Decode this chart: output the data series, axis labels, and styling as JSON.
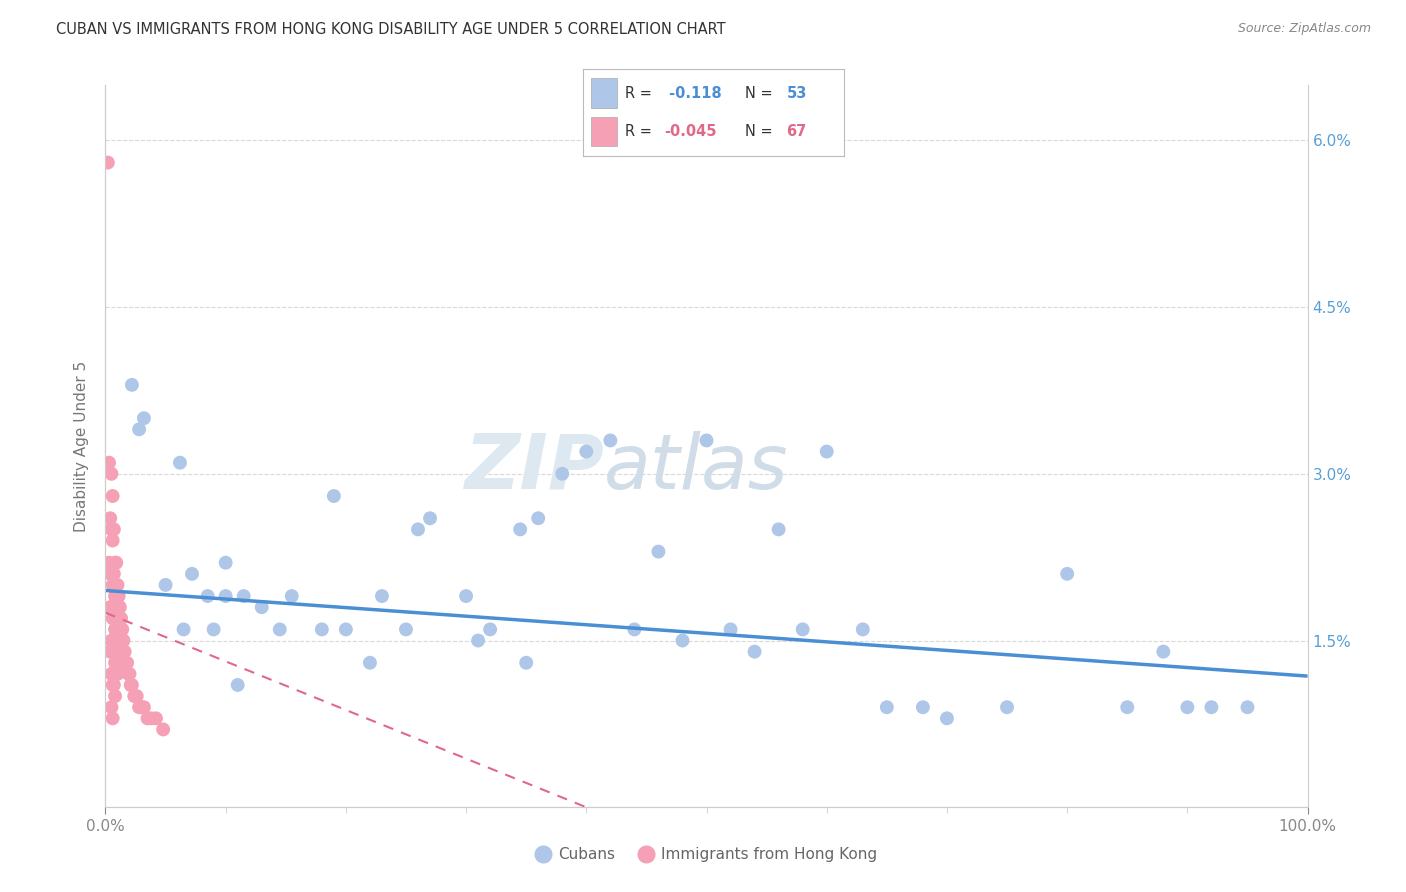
{
  "title": "CUBAN VS IMMIGRANTS FROM HONG KONG DISABILITY AGE UNDER 5 CORRELATION CHART",
  "source": "Source: ZipAtlas.com",
  "ylabel": "Disability Age Under 5",
  "xmin": 0.0,
  "xmax": 1.0,
  "ymin": 0.0,
  "ymax": 0.065,
  "label_cubans": "Cubans",
  "label_hk": "Immigrants from Hong Kong",
  "blue_scatter_color": "#aec6e8",
  "pink_scatter_color": "#f5a0b5",
  "trend_blue_color": "#4a8fd4",
  "trend_pink_color": "#e06888",
  "legend_r_blue": "-0.118",
  "legend_n_blue": "53",
  "legend_r_pink": "-0.045",
  "legend_n_pink": "67",
  "background_color": "#ffffff",
  "grid_color": "#d8d8d8",
  "right_axis_color": "#5a9fd4",
  "ytick_positions": [
    0.0,
    0.015,
    0.03,
    0.045,
    0.06
  ],
  "ytick_labels_right": [
    "",
    "1.5%",
    "3.0%",
    "4.5%",
    "6.0%"
  ],
  "xtick_minor": [
    0.1,
    0.2,
    0.3,
    0.4,
    0.5,
    0.6,
    0.7,
    0.8,
    0.9
  ],
  "blue_trend_x0": 0.0,
  "blue_trend_y0": 0.0195,
  "blue_trend_x1": 1.0,
  "blue_trend_y1": 0.0118,
  "pink_trend_x0": 0.0,
  "pink_trend_y0": 0.0175,
  "pink_trend_x1": 0.4,
  "pink_trend_y1": 0.0,
  "cubans_x": [
    0.022,
    0.028,
    0.032,
    0.05,
    0.062,
    0.065,
    0.072,
    0.085,
    0.09,
    0.1,
    0.1,
    0.11,
    0.115,
    0.13,
    0.145,
    0.155,
    0.18,
    0.19,
    0.2,
    0.22,
    0.23,
    0.25,
    0.26,
    0.27,
    0.3,
    0.31,
    0.32,
    0.345,
    0.35,
    0.36,
    0.38,
    0.4,
    0.42,
    0.44,
    0.46,
    0.48,
    0.5,
    0.52,
    0.54,
    0.56,
    0.58,
    0.6,
    0.63,
    0.65,
    0.68,
    0.7,
    0.75,
    0.8,
    0.85,
    0.88,
    0.9,
    0.92,
    0.95
  ],
  "cubans_y": [
    0.038,
    0.034,
    0.035,
    0.02,
    0.031,
    0.016,
    0.021,
    0.019,
    0.016,
    0.019,
    0.022,
    0.011,
    0.019,
    0.018,
    0.016,
    0.019,
    0.016,
    0.028,
    0.016,
    0.013,
    0.019,
    0.016,
    0.025,
    0.026,
    0.019,
    0.015,
    0.016,
    0.025,
    0.013,
    0.026,
    0.03,
    0.032,
    0.033,
    0.016,
    0.023,
    0.015,
    0.033,
    0.016,
    0.014,
    0.025,
    0.016,
    0.032,
    0.016,
    0.009,
    0.009,
    0.008,
    0.009,
    0.021,
    0.009,
    0.014,
    0.009,
    0.009,
    0.009
  ],
  "hk_x": [
    0.002,
    0.003,
    0.003,
    0.004,
    0.004,
    0.004,
    0.004,
    0.005,
    0.005,
    0.005,
    0.005,
    0.005,
    0.005,
    0.005,
    0.006,
    0.006,
    0.006,
    0.006,
    0.006,
    0.006,
    0.006,
    0.007,
    0.007,
    0.007,
    0.007,
    0.007,
    0.008,
    0.008,
    0.008,
    0.008,
    0.008,
    0.009,
    0.009,
    0.009,
    0.009,
    0.01,
    0.01,
    0.01,
    0.01,
    0.011,
    0.011,
    0.011,
    0.012,
    0.012,
    0.012,
    0.013,
    0.013,
    0.014,
    0.014,
    0.015,
    0.015,
    0.016,
    0.017,
    0.018,
    0.019,
    0.02,
    0.021,
    0.022,
    0.024,
    0.026,
    0.028,
    0.03,
    0.032,
    0.035,
    0.038,
    0.042,
    0.048
  ],
  "hk_y": [
    0.058,
    0.031,
    0.022,
    0.026,
    0.021,
    0.018,
    0.014,
    0.03,
    0.025,
    0.021,
    0.018,
    0.015,
    0.012,
    0.009,
    0.028,
    0.024,
    0.02,
    0.017,
    0.014,
    0.011,
    0.008,
    0.025,
    0.021,
    0.018,
    0.014,
    0.011,
    0.022,
    0.019,
    0.016,
    0.013,
    0.01,
    0.022,
    0.019,
    0.016,
    0.012,
    0.02,
    0.018,
    0.015,
    0.012,
    0.019,
    0.016,
    0.013,
    0.018,
    0.016,
    0.013,
    0.017,
    0.014,
    0.016,
    0.013,
    0.015,
    0.013,
    0.014,
    0.013,
    0.013,
    0.012,
    0.012,
    0.011,
    0.011,
    0.01,
    0.01,
    0.009,
    0.009,
    0.009,
    0.008,
    0.008,
    0.008,
    0.007
  ]
}
